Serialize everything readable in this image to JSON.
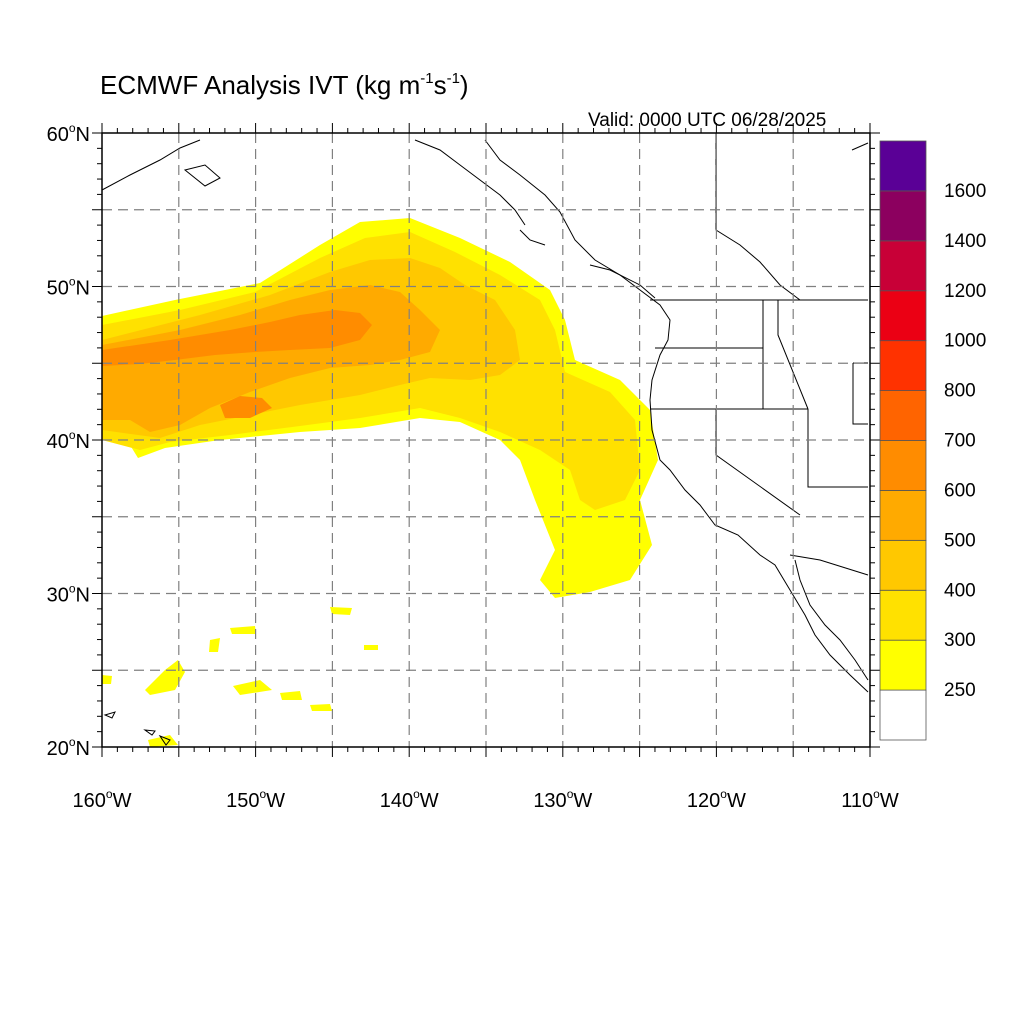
{
  "title": {
    "main": "ECMWF Analysis IVT (kg m",
    "exp1": "-1",
    "mid": "s",
    "exp2": "-1",
    "close": ")"
  },
  "valid_text": "Valid: 0000 UTC 06/28/2025",
  "map": {
    "lon_range": [
      -160,
      -110
    ],
    "lat_range": [
      20,
      60
    ],
    "grid": true,
    "lat_ticks": [
      {
        "value": 60,
        "num": "60",
        "hem": "N"
      },
      {
        "value": 50,
        "num": "50",
        "hem": "N"
      },
      {
        "value": 40,
        "num": "40",
        "hem": "N"
      },
      {
        "value": 30,
        "num": "30",
        "hem": "N"
      },
      {
        "value": 20,
        "num": "20",
        "hem": "N"
      }
    ],
    "lon_ticks": [
      {
        "value": -160,
        "num": "160",
        "hem": "W"
      },
      {
        "value": -150,
        "num": "150",
        "hem": "W"
      },
      {
        "value": -140,
        "num": "140",
        "hem": "W"
      },
      {
        "value": -130,
        "num": "130",
        "hem": "W"
      },
      {
        "value": -120,
        "num": "120",
        "hem": "W"
      },
      {
        "value": -110,
        "num": "110",
        "hem": "W"
      }
    ]
  },
  "colorbar": {
    "labels": [
      "250",
      "300",
      "400",
      "500",
      "600",
      "700",
      "800",
      "1000",
      "1200",
      "1400",
      "1600"
    ],
    "colors": [
      "#ffffff",
      "#ffff00",
      "#ffe100",
      "#ffc800",
      "#ffaa00",
      "#ff8c00",
      "#ff6400",
      "#ff3200",
      "#eb0014",
      "#c80037",
      "#8c005f",
      "#5a0096"
    ]
  },
  "colors": {
    "ivt_250": "#ffff00",
    "ivt_300": "#ffe100",
    "ivt_400": "#ffc800",
    "ivt_500": "#ffaa00",
    "ivt_600": "#ff8c00",
    "coastline": "#000000",
    "gridline": "#808080"
  }
}
